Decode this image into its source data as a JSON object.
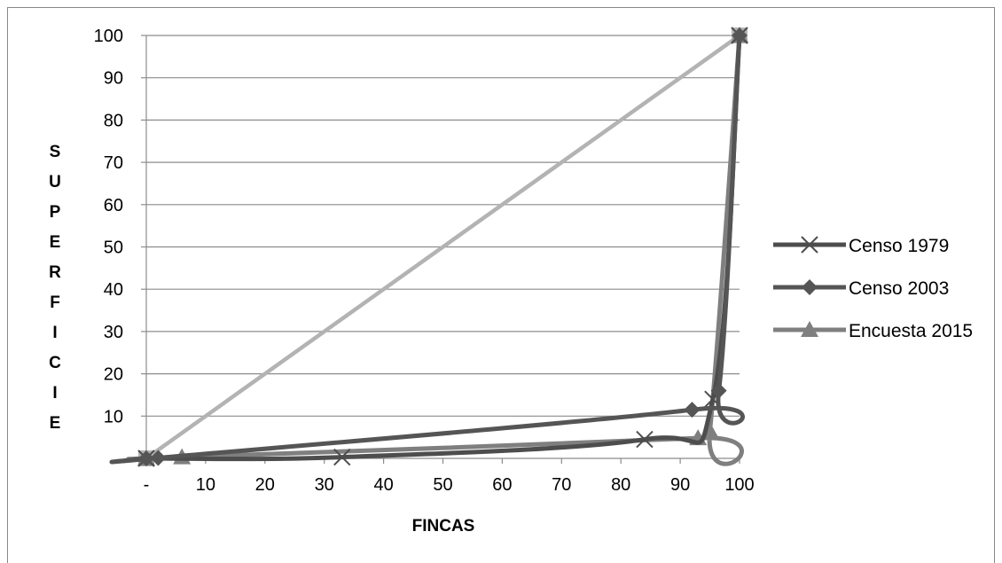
{
  "chart_data": {
    "type": "line",
    "xlabel": "FINCAS",
    "ylabel": "SUPERFICIE",
    "xlim": [
      0,
      100
    ],
    "ylim": [
      0,
      100
    ],
    "x_ticks": [
      "-",
      "10",
      "20",
      "30",
      "40",
      "50",
      "60",
      "70",
      "80",
      "90",
      "100"
    ],
    "y_ticks": [
      "-",
      "10",
      "20",
      "30",
      "40",
      "50",
      "60",
      "70",
      "80",
      "90",
      "100"
    ],
    "grid": "horizontal",
    "legend_position": "right",
    "series": [
      {
        "name": "Censo 1979",
        "marker": "x",
        "color": "#4d4d4d",
        "points": [
          [
            0,
            0
          ],
          [
            33,
            0.3
          ],
          [
            84,
            4.5
          ],
          [
            95.5,
            14
          ],
          [
            100,
            100
          ]
        ]
      },
      {
        "name": "Censo 2003",
        "marker": "diamond",
        "color": "#555555",
        "points": [
          [
            0,
            0
          ],
          [
            2,
            0.1
          ],
          [
            92,
            11.5
          ],
          [
            96.5,
            16
          ],
          [
            100,
            100
          ]
        ]
      },
      {
        "name": "Encuesta 2015",
        "marker": "triangle",
        "color": "#7f7f7f",
        "points": [
          [
            0,
            0
          ],
          [
            6,
            0.3
          ],
          [
            93,
            4.8
          ],
          [
            95,
            6.5
          ],
          [
            100,
            100
          ]
        ]
      },
      {
        "name": "",
        "marker": "square",
        "color": "#b3b3b3",
        "points": [
          [
            0,
            0
          ],
          [
            100,
            100
          ]
        ]
      }
    ]
  }
}
